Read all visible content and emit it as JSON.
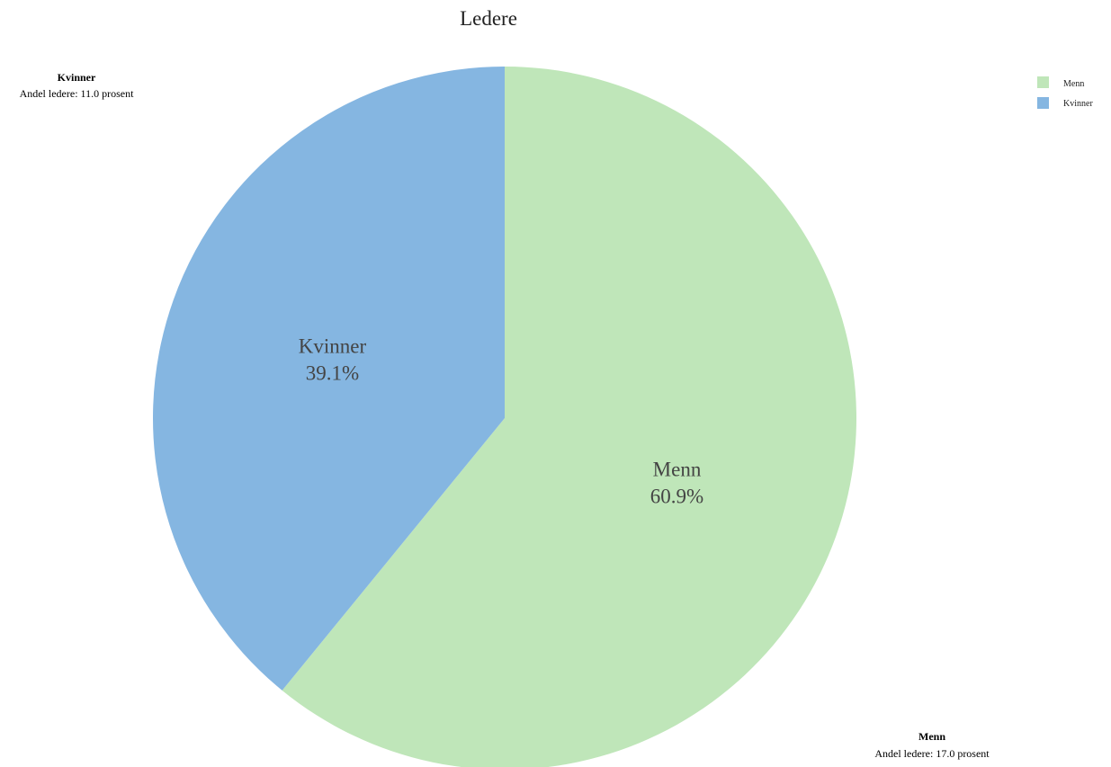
{
  "chart_data": {
    "type": "pie",
    "title": "Ledere",
    "slices": [
      {
        "name": "Menn",
        "percent_label": "60.9%",
        "value": 60.9,
        "color": "#bfe6b9"
      },
      {
        "name": "Kvinner",
        "percent_label": "39.1%",
        "value": 39.1,
        "color": "#85b6e1"
      }
    ],
    "annotations": [
      {
        "target": "Kvinner",
        "title": "Kvinner",
        "text": "Andel ledere: 11.0 prosent"
      },
      {
        "target": "Menn",
        "title": "Menn",
        "text": "Andel ledere: 17.0 prosent"
      }
    ],
    "legend": {
      "placement": "top-right",
      "entries": [
        {
          "label": "Menn",
          "color": "#bfe6b9"
        },
        {
          "label": "Kvinner",
          "color": "#85b6e1"
        }
      ]
    },
    "start": "top",
    "direction": "clockwise"
  }
}
